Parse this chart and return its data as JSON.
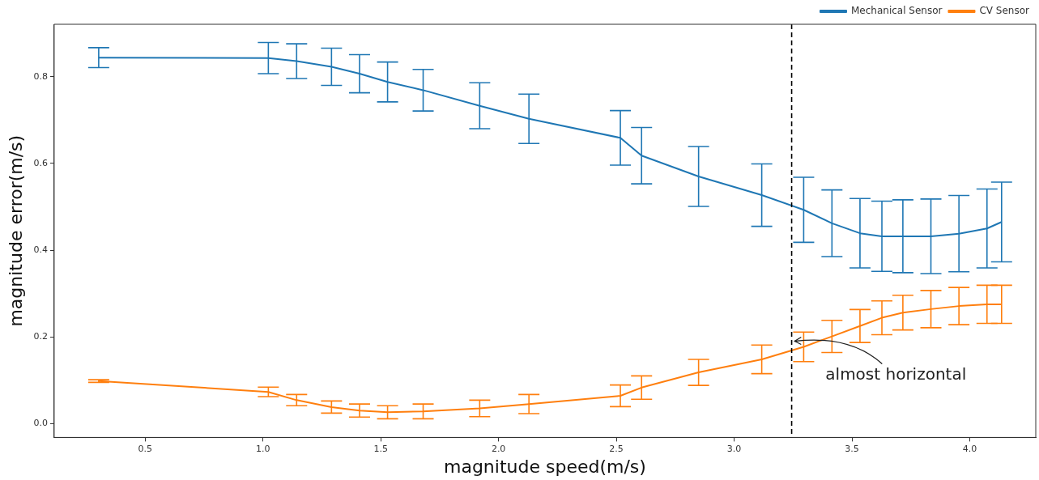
{
  "chart_data": {
    "type": "line",
    "xlabel": "magnitude speed(m/s)",
    "ylabel": "magnitude error(m/s)",
    "x": [
      0.303,
      1.023,
      1.143,
      1.291,
      1.41,
      1.529,
      1.68,
      1.92,
      2.129,
      2.517,
      2.607,
      2.849,
      3.117,
      3.295,
      3.415,
      3.534,
      3.627,
      3.716,
      3.835,
      3.954,
      4.073,
      4.135
    ],
    "series": [
      {
        "name": "Mechanical Sensor",
        "color": "#1f77b4",
        "values": [
          0.844,
          0.843,
          0.836,
          0.823,
          0.807,
          0.788,
          0.769,
          0.733,
          0.703,
          0.659,
          0.618,
          0.57,
          0.527,
          0.493,
          0.462,
          0.439,
          0.432,
          0.432,
          0.432,
          0.438,
          0.45,
          0.465
        ],
        "errors": [
          0.023,
          0.036,
          0.04,
          0.043,
          0.044,
          0.046,
          0.048,
          0.053,
          0.057,
          0.063,
          0.065,
          0.069,
          0.072,
          0.075,
          0.077,
          0.08,
          0.081,
          0.084,
          0.086,
          0.088,
          0.091,
          0.092
        ]
      },
      {
        "name": "CV Sensor",
        "color": "#ff7f0e",
        "values": [
          0.098,
          0.073,
          0.054,
          0.038,
          0.03,
          0.026,
          0.028,
          0.035,
          0.045,
          0.064,
          0.083,
          0.118,
          0.148,
          0.177,
          0.201,
          0.225,
          0.244,
          0.256,
          0.264,
          0.271,
          0.275,
          0.275
        ],
        "errors": [
          0.003,
          0.011,
          0.013,
          0.014,
          0.015,
          0.015,
          0.017,
          0.019,
          0.022,
          0.025,
          0.027,
          0.03,
          0.033,
          0.034,
          0.037,
          0.038,
          0.039,
          0.04,
          0.043,
          0.043,
          0.044,
          0.044
        ]
      }
    ],
    "xlim": [
      0.114,
      4.28
    ],
    "ylim": [
      -0.032,
      0.921
    ],
    "xticks": [
      {
        "value": 0.5,
        "label": "0.5"
      },
      {
        "value": 1,
        "label": "1.0"
      },
      {
        "value": 1.5,
        "label": "1.5"
      },
      {
        "value": 2,
        "label": "2.0"
      },
      {
        "value": 2.5,
        "label": "2.5"
      },
      {
        "value": 3,
        "label": "3.0"
      },
      {
        "value": 3.5,
        "label": "3.5"
      },
      {
        "value": 4,
        "label": "4.0"
      }
    ],
    "yticks": [
      {
        "value": 0,
        "label": "0.0"
      },
      {
        "value": 0.2,
        "label": "0.2"
      },
      {
        "value": 0.4,
        "label": "0.4"
      },
      {
        "value": 0.6,
        "label": "0.6"
      },
      {
        "value": 0.8,
        "label": "0.8"
      }
    ],
    "ref_lines": [
      {
        "axis": "x",
        "value": 3.244,
        "color": "#000000",
        "line_style": "dashed"
      }
    ],
    "annotations": [
      {
        "text": "almost horizontal",
        "x": 3.25,
        "y": 0.19
      }
    ],
    "legend": "top right",
    "grid": false,
    "marker": "none",
    "line_style": "solid"
  }
}
